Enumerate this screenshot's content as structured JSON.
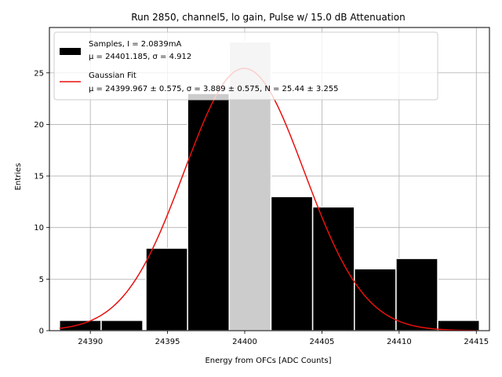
{
  "chart_data": {
    "type": "histogram",
    "title": "Run 2850, channel5, lo gain, Pulse w/ 15.0 dB Attenuation",
    "xlabel": "Energy from OFCs [ADC Counts]",
    "ylabel": "Entries",
    "xlim": [
      24387.35,
      24415.85
    ],
    "ylim": [
      0,
      29.4
    ],
    "x_ticks": [
      24390,
      24395,
      24400,
      24405,
      24410,
      24415
    ],
    "y_ticks": [
      0,
      5,
      10,
      15,
      20,
      25
    ],
    "grid": true,
    "bins": [
      {
        "x0": 24388.0,
        "x1": 24390.7,
        "count": 1
      },
      {
        "x0": 24390.7,
        "x1": 24393.4,
        "count": 1
      },
      {
        "x0": 24393.6,
        "x1": 24396.3,
        "count": 8
      },
      {
        "x0": 24396.3,
        "x1": 24399.0,
        "count": 23
      },
      {
        "x0": 24399.0,
        "x1": 24401.7,
        "count": 28
      },
      {
        "x0": 24401.7,
        "x1": 24404.4,
        "count": 13
      },
      {
        "x0": 24404.4,
        "x1": 24407.1,
        "count": 12
      },
      {
        "x0": 24407.1,
        "x1": 24409.8,
        "count": 6
      },
      {
        "x0": 24409.8,
        "x1": 24412.5,
        "count": 7
      },
      {
        "x0": 24412.5,
        "x1": 24415.2,
        "count": 1
      }
    ],
    "bin_fill": "#000000",
    "bin_edge": "#ffffff",
    "highlight_bin_index": 4,
    "highlight_fill": "#cccccc",
    "fit": {
      "name": "Gaussian Fit",
      "mu": 24399.967,
      "sigma": 3.889,
      "N": 25.44,
      "x_range": [
        24388.0,
        24415.0
      ],
      "color": "#e8100d"
    },
    "legend": {
      "position": "upper-left",
      "entries": [
        {
          "line1": "Samples, I = 2.0839mA",
          "line2": "μ = 24401.185, σ = 4.912",
          "swatch": "patch"
        },
        {
          "line1": "Gaussian Fit",
          "line2": "μ = 24399.967 ± 0.575, σ = 3.889 ± 0.575, N = 25.44 ± 3.255",
          "swatch": "line"
        }
      ]
    }
  }
}
